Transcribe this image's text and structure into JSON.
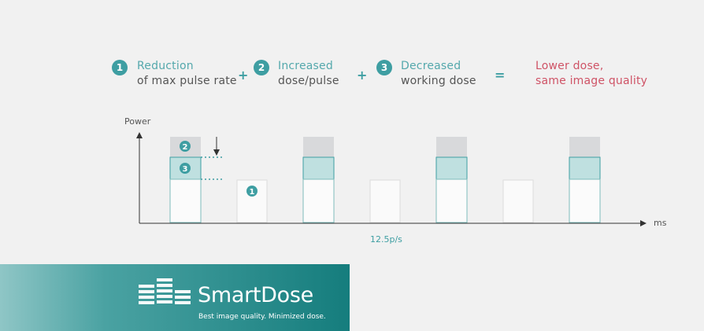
{
  "equation": {
    "items": [
      {
        "number": "1",
        "line1": "Reduction",
        "line2": "of max pulse rate"
      },
      {
        "number": "2",
        "line1": "Increased",
        "line2": "dose/pulse"
      },
      {
        "number": "3",
        "line1": "Decreased",
        "line2": "working dose"
      }
    ],
    "operators": [
      "+",
      "+",
      "="
    ],
    "result": {
      "line1": "Lower dose,",
      "line2": "same image quality"
    }
  },
  "diagram": {
    "y_axis_label": "Power",
    "x_axis_label": "ms",
    "rate_label": "12.5p/s",
    "markers": [
      "2",
      "3",
      "1"
    ]
  },
  "brand": {
    "name": "SmartDose",
    "tagline": "Best image quality. Minimized dose."
  },
  "colors": {
    "teal": "#3e9ea2",
    "teal_fill": "#bfe0e0",
    "gray_fill": "#d8d9db",
    "red": "#cf5366"
  }
}
